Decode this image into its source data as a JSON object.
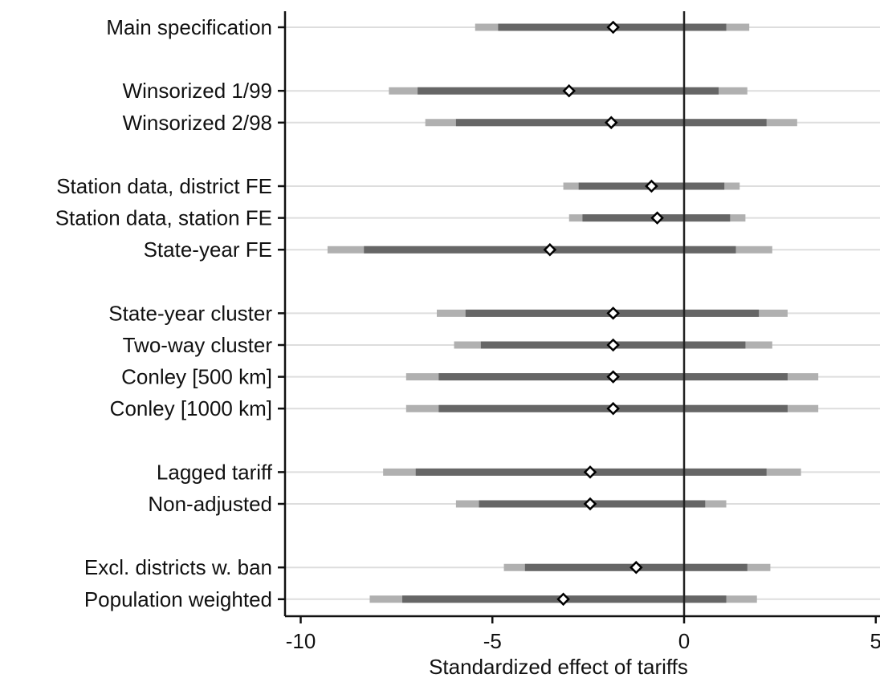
{
  "chart_data": {
    "type": "coefficient-plot",
    "xlabel": "Standardized effect of tariffs",
    "xlim": [
      -10.4,
      5
    ],
    "x_ticks": [
      -10,
      -5,
      0,
      5
    ],
    "x_tick_labels": [
      "-10",
      "-5",
      "0",
      "5"
    ],
    "reference_line": 0,
    "grid": "horizontal",
    "colors": {
      "ci_inner": "#666666",
      "ci_outer": "#b0b0b0",
      "grid": "#dddddd",
      "marker_fill": "#ffffff",
      "marker_stroke": "#000000"
    },
    "rows": [
      {
        "label": "Main specification",
        "slot": 0,
        "est": -1.85,
        "ci_inner": [
          -4.85,
          1.1
        ],
        "ci_outer": [
          -5.45,
          1.7
        ]
      },
      {
        "label": "Winsorized 1/99",
        "slot": 2,
        "est": -3.0,
        "ci_inner": [
          -6.95,
          0.9
        ],
        "ci_outer": [
          -7.7,
          1.65
        ]
      },
      {
        "label": "Winsorized 2/98",
        "slot": 3,
        "est": -1.9,
        "ci_inner": [
          -5.95,
          2.15
        ],
        "ci_outer": [
          -6.75,
          2.95
        ]
      },
      {
        "label": "Station data, district FE",
        "slot": 5,
        "est": -0.85,
        "ci_inner": [
          -2.75,
          1.05
        ],
        "ci_outer": [
          -3.15,
          1.45
        ]
      },
      {
        "label": "Station data, station FE",
        "slot": 6,
        "est": -0.7,
        "ci_inner": [
          -2.65,
          1.2
        ],
        "ci_outer": [
          -3.0,
          1.6
        ]
      },
      {
        "label": "State-year FE",
        "slot": 7,
        "est": -3.5,
        "ci_inner": [
          -8.35,
          1.35
        ],
        "ci_outer": [
          -9.3,
          2.3
        ]
      },
      {
        "label": "State-year cluster",
        "slot": 9,
        "est": -1.85,
        "ci_inner": [
          -5.7,
          1.95
        ],
        "ci_outer": [
          -6.45,
          2.7
        ]
      },
      {
        "label": "Two-way cluster",
        "slot": 10,
        "est": -1.85,
        "ci_inner": [
          -5.3,
          1.6
        ],
        "ci_outer": [
          -6.0,
          2.3
        ]
      },
      {
        "label": "Conley [500 km]",
        "slot": 11,
        "est": -1.85,
        "ci_inner": [
          -6.4,
          2.7
        ],
        "ci_outer": [
          -7.25,
          3.5
        ]
      },
      {
        "label": "Conley [1000 km]",
        "slot": 12,
        "est": -1.85,
        "ci_inner": [
          -6.4,
          2.7
        ],
        "ci_outer": [
          -7.25,
          3.5
        ]
      },
      {
        "label": "Lagged tariff",
        "slot": 14,
        "est": -2.45,
        "ci_inner": [
          -7.0,
          2.15
        ],
        "ci_outer": [
          -7.85,
          3.05
        ]
      },
      {
        "label": "Non-adjusted",
        "slot": 15,
        "est": -2.45,
        "ci_inner": [
          -5.35,
          0.55
        ],
        "ci_outer": [
          -5.95,
          1.1
        ]
      },
      {
        "label": "Excl. districts w. ban",
        "slot": 17,
        "est": -1.25,
        "ci_inner": [
          -4.15,
          1.65
        ],
        "ci_outer": [
          -4.7,
          2.25
        ]
      },
      {
        "label": "Population weighted",
        "slot": 18,
        "est": -3.15,
        "ci_inner": [
          -7.35,
          1.1
        ],
        "ci_outer": [
          -8.2,
          1.9
        ]
      }
    ]
  }
}
